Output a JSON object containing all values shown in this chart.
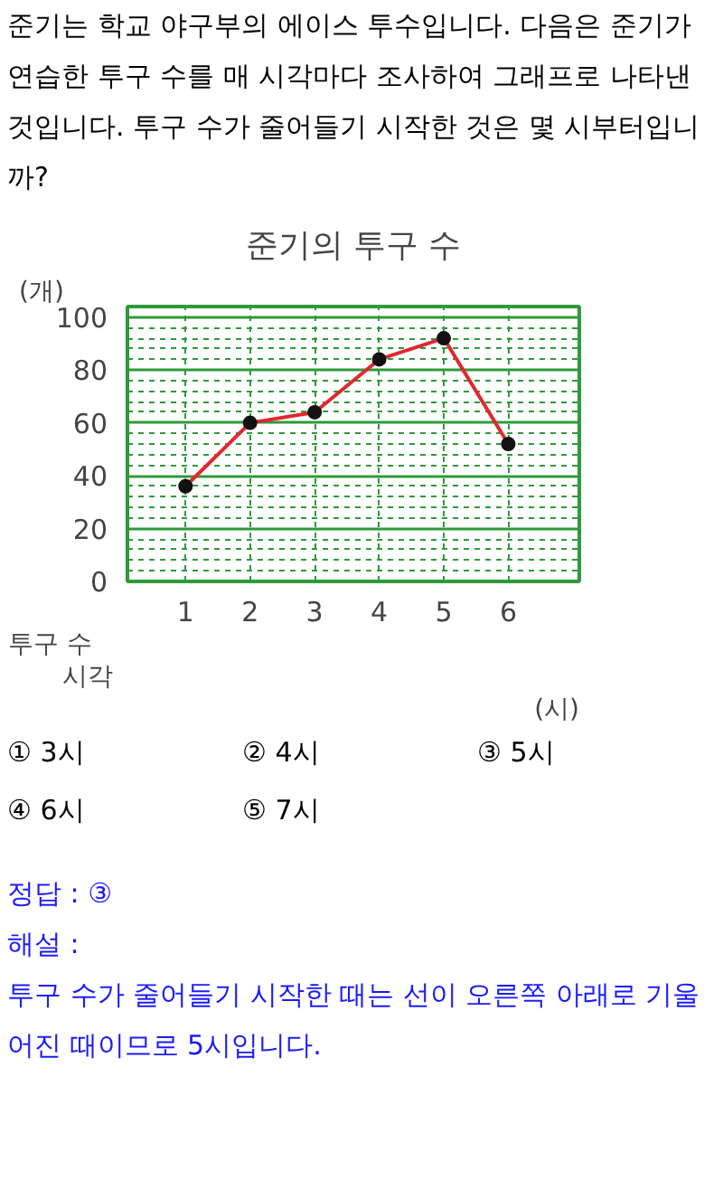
{
  "chart_data": {
    "type": "line",
    "title": "준기의 투구 수",
    "ylabel": "(개)",
    "xlabel": "(시)",
    "x": [
      1,
      2,
      3,
      4,
      5,
      6
    ],
    "series": [
      {
        "color": "#e0282e",
        "values": [
          36,
          60,
          64,
          84,
          92,
          52
        ]
      }
    ],
    "xlim": [
      0.1,
      7.1
    ],
    "xticks": [
      1,
      2,
      3,
      4,
      5,
      6
    ],
    "ylim": [
      0,
      104
    ],
    "yticks": [
      0,
      20,
      40,
      60,
      80,
      100
    ],
    "grid": true,
    "marker": "circle",
    "line_style": "solid",
    "annotations": [
      "준기는 학교 야구부의 에이스 투수입니다. 다음은 준기가 연습한 투구 수를 매 시각마다 조사하여 그래프로 나타낸 것입니다. 투구 수가 줄어들기 시작한 것은 몇 시부터입니까?",
      "투구 수",
      "시각",
      "① 3시",
      "② 4시",
      "③ 5시",
      "④ 6시",
      "⑤ 7시",
      "정답 : ③",
      "해설 :",
      "투구 수가 줄어들기 시작한 때는 선이 오른쪽 아래로 기울어진 때이므로 5시입니다."
    ]
  }
}
